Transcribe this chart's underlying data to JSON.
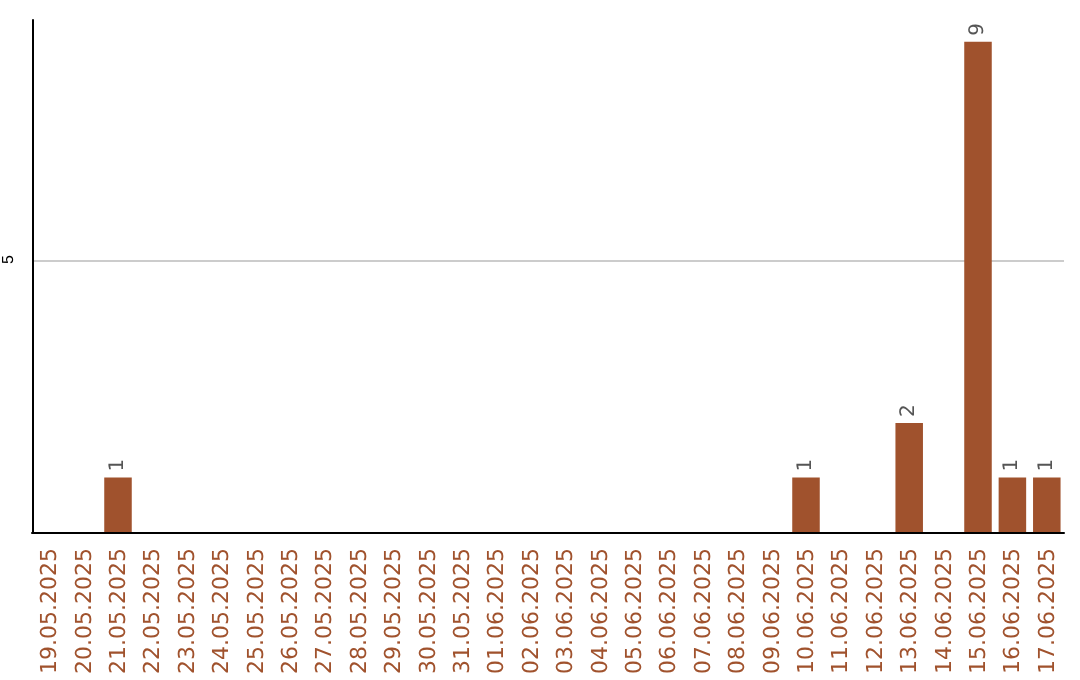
{
  "chart_data": {
    "type": "bar",
    "categories": [
      "19.05.2025",
      "20.05.2025",
      "21.05.2025",
      "22.05.2025",
      "23.05.2025",
      "24.05.2025",
      "25.05.2025",
      "26.05.2025",
      "27.05.2025",
      "28.05.2025",
      "29.05.2025",
      "30.05.2025",
      "31.05.2025",
      "01.06.2025",
      "02.06.2025",
      "03.06.2025",
      "04.06.2025",
      "05.06.2025",
      "06.06.2025",
      "07.06.2025",
      "08.06.2025",
      "09.06.2025",
      "10.06.2025",
      "11.06.2025",
      "12.06.2025",
      "13.06.2025",
      "14.06.2025",
      "15.06.2025",
      "16.06.2025",
      "17.06.2025"
    ],
    "values": [
      0,
      0,
      1,
      0,
      0,
      0,
      0,
      0,
      0,
      0,
      0,
      0,
      0,
      0,
      0,
      0,
      0,
      0,
      0,
      0,
      0,
      0,
      1,
      0,
      0,
      2,
      0,
      9,
      1,
      1
    ],
    "value_labels": [
      null,
      null,
      "1",
      null,
      null,
      null,
      null,
      null,
      null,
      null,
      null,
      null,
      null,
      null,
      null,
      null,
      null,
      null,
      null,
      null,
      null,
      null,
      "1",
      null,
      null,
      "2",
      null,
      "9",
      "1",
      "1"
    ],
    "color": "#a0522d",
    "ylim": [
      0,
      9.4
    ],
    "yticks": [
      {
        "value": 0,
        "label": null
      },
      5
    ],
    "grid": "y"
  }
}
